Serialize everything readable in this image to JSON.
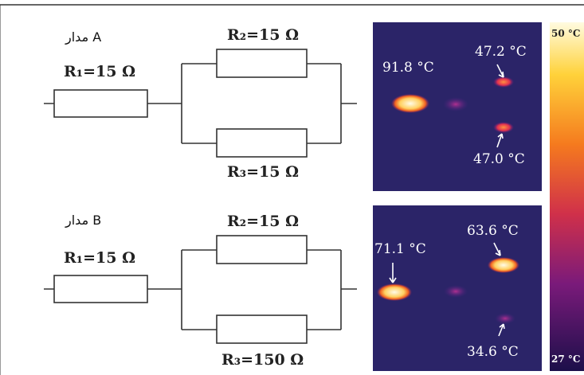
{
  "circuits": [
    {
      "label": "مدار A",
      "resistors": [
        "R₁=15 Ω",
        "R₂=15 Ω",
        "R₃=15 Ω"
      ],
      "thermal": [
        "91.8 °C",
        "47.2 °C",
        "47.0 °C"
      ]
    },
    {
      "label": "مدار B",
      "resistors": [
        "R₁=15 Ω",
        "R₂=15 Ω",
        "R₃=150 Ω"
      ],
      "thermal": [
        "71.1 °C",
        "63.6 °C",
        "34.6 °C"
      ]
    }
  ],
  "colorbar": {
    "max": "50 °C",
    "min": "27 °C"
  }
}
